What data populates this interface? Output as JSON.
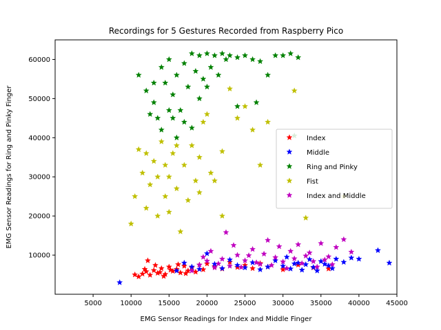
{
  "chart_data": {
    "type": "scatter",
    "title": "Recordings for 5 Gestures Recorded from Raspberry Pico",
    "xlabel": "EMG Sensor Readings for Index and Middle Finger",
    "ylabel": "EMG Sensor Readings for Ring and Pinky Finger",
    "xlim": [
      0,
      45000
    ],
    "ylim": [
      0,
      65000
    ],
    "xticks": [
      5000,
      10000,
      15000,
      20000,
      25000,
      30000,
      35000,
      40000,
      45000
    ],
    "xtick_labels": [
      "5000",
      "10000",
      "15000",
      "20000",
      "25000",
      "30000",
      "35000",
      "40000",
      "45000"
    ],
    "yticks": [
      10000,
      20000,
      30000,
      40000,
      50000,
      60000
    ],
    "ytick_labels": [
      "10000",
      "20000",
      "30000",
      "40000",
      "50000",
      "60000"
    ],
    "grid": false,
    "legend_position": "center-right",
    "marker": "star",
    "series": [
      {
        "name": "Index",
        "color": "#ff0000",
        "points": [
          [
            11000,
            4500
          ],
          [
            11500,
            5200
          ],
          [
            12000,
            5800
          ],
          [
            12500,
            4900
          ],
          [
            13000,
            6100
          ],
          [
            13500,
            5400
          ],
          [
            14000,
            6600
          ],
          [
            14500,
            5100
          ],
          [
            15000,
            7000
          ],
          [
            15500,
            5900
          ],
          [
            16000,
            6400
          ],
          [
            16500,
            5500
          ],
          [
            17000,
            7200
          ],
          [
            17500,
            6000
          ],
          [
            18000,
            6800
          ],
          [
            18500,
            5700
          ],
          [
            19000,
            7500
          ],
          [
            19500,
            6300
          ],
          [
            20000,
            7800
          ],
          [
            12200,
            8600
          ],
          [
            13200,
            7400
          ],
          [
            14300,
            4600
          ],
          [
            15200,
            6200
          ],
          [
            16200,
            7600
          ],
          [
            17200,
            5300
          ],
          [
            21000,
            7100
          ],
          [
            22000,
            6500
          ],
          [
            23000,
            8200
          ],
          [
            24000,
            6900
          ],
          [
            25000,
            7400
          ],
          [
            26000,
            6600
          ],
          [
            27000,
            7900
          ],
          [
            28000,
            7000
          ],
          [
            30000,
            6300
          ],
          [
            32000,
            7500
          ],
          [
            34000,
            6800
          ],
          [
            36000,
            6500
          ],
          [
            10500,
            5000
          ],
          [
            11800,
            6400
          ],
          [
            13800,
            5600
          ]
        ]
      },
      {
        "name": "Middle",
        "color": "#0000ff",
        "points": [
          [
            8500,
            3000
          ],
          [
            16000,
            6000
          ],
          [
            18000,
            7000
          ],
          [
            20000,
            10400
          ],
          [
            22000,
            6600
          ],
          [
            24000,
            7400
          ],
          [
            26000,
            8100
          ],
          [
            28000,
            7000
          ],
          [
            29000,
            8600
          ],
          [
            30000,
            7200
          ],
          [
            31000,
            6500
          ],
          [
            32000,
            8000
          ],
          [
            33000,
            7600
          ],
          [
            34000,
            6900
          ],
          [
            35000,
            8400
          ],
          [
            36000,
            7300
          ],
          [
            37000,
            9000
          ],
          [
            38000,
            8200
          ],
          [
            39000,
            9300
          ],
          [
            40000,
            9000
          ],
          [
            42500,
            11200
          ],
          [
            44000,
            8000
          ],
          [
            30500,
            9500
          ],
          [
            31500,
            7800
          ],
          [
            32500,
            6200
          ],
          [
            33500,
            8900
          ],
          [
            34500,
            6000
          ],
          [
            35500,
            7700
          ],
          [
            36500,
            6600
          ],
          [
            27000,
            6300
          ],
          [
            25000,
            6800
          ],
          [
            23000,
            8800
          ],
          [
            21000,
            7700
          ],
          [
            19000,
            6400
          ],
          [
            17000,
            8000
          ]
        ]
      },
      {
        "name": "Ring and Pinky",
        "color": "#008000",
        "points": [
          [
            11000,
            56000
          ],
          [
            12000,
            52000
          ],
          [
            13000,
            49000
          ],
          [
            13500,
            45000
          ],
          [
            14000,
            58000
          ],
          [
            14500,
            54000
          ],
          [
            15000,
            60000
          ],
          [
            15500,
            51000
          ],
          [
            16000,
            56000
          ],
          [
            16500,
            47000
          ],
          [
            17000,
            59000
          ],
          [
            17500,
            53000
          ],
          [
            18000,
            61500
          ],
          [
            18500,
            57000
          ],
          [
            19000,
            61000
          ],
          [
            19500,
            55000
          ],
          [
            20000,
            61500
          ],
          [
            20500,
            58000
          ],
          [
            21000,
            61000
          ],
          [
            21500,
            56000
          ],
          [
            22000,
            61500
          ],
          [
            22500,
            60000
          ],
          [
            23000,
            61000
          ],
          [
            24000,
            60500
          ],
          [
            25000,
            61000
          ],
          [
            26000,
            60000
          ],
          [
            27000,
            59500
          ],
          [
            28000,
            56000
          ],
          [
            26500,
            49000
          ],
          [
            24000,
            48000
          ],
          [
            29000,
            61000
          ],
          [
            30000,
            61000
          ],
          [
            31000,
            61500
          ],
          [
            32000,
            60500
          ],
          [
            31500,
            40500
          ],
          [
            14000,
            42000
          ],
          [
            15000,
            47000
          ],
          [
            16000,
            40000
          ],
          [
            17000,
            44000
          ],
          [
            18000,
            42500
          ],
          [
            13000,
            54000
          ],
          [
            12500,
            46000
          ],
          [
            19000,
            50000
          ],
          [
            20000,
            53000
          ],
          [
            15500,
            45000
          ]
        ]
      },
      {
        "name": "Fist",
        "color": "#bfbf00",
        "points": [
          [
            10000,
            18000
          ],
          [
            10500,
            25000
          ],
          [
            11000,
            37000
          ],
          [
            11500,
            31000
          ],
          [
            12000,
            22000
          ],
          [
            12500,
            28000
          ],
          [
            13000,
            34000
          ],
          [
            13500,
            20000
          ],
          [
            14000,
            39000
          ],
          [
            14500,
            25000
          ],
          [
            15000,
            30000
          ],
          [
            15500,
            36000
          ],
          [
            16000,
            27000
          ],
          [
            16500,
            16000
          ],
          [
            17000,
            33000
          ],
          [
            17500,
            24000
          ],
          [
            18000,
            38000
          ],
          [
            18500,
            29000
          ],
          [
            19000,
            35000
          ],
          [
            19500,
            44000
          ],
          [
            20000,
            46000
          ],
          [
            21000,
            29000
          ],
          [
            22000,
            36500
          ],
          [
            23000,
            52500
          ],
          [
            24000,
            45000
          ],
          [
            25000,
            48000
          ],
          [
            26000,
            42000
          ],
          [
            27000,
            33000
          ],
          [
            28000,
            44000
          ],
          [
            31500,
            52000
          ],
          [
            33000,
            19500
          ],
          [
            38000,
            25000
          ],
          [
            22000,
            20000
          ],
          [
            19000,
            26000
          ],
          [
            20500,
            31000
          ],
          [
            13500,
            30000
          ],
          [
            14500,
            33000
          ],
          [
            15000,
            21000
          ],
          [
            16000,
            38000
          ],
          [
            12000,
            36000
          ]
        ]
      },
      {
        "name": "Index and Middle",
        "color": "#bf00bf",
        "points": [
          [
            18000,
            6000
          ],
          [
            19000,
            7500
          ],
          [
            20000,
            8500
          ],
          [
            21000,
            6800
          ],
          [
            22000,
            9000
          ],
          [
            22500,
            15800
          ],
          [
            23000,
            7200
          ],
          [
            24000,
            10000
          ],
          [
            25000,
            8600
          ],
          [
            26000,
            11500
          ],
          [
            27000,
            7700
          ],
          [
            28000,
            13800
          ],
          [
            29000,
            9400
          ],
          [
            30000,
            8300
          ],
          [
            31000,
            11000
          ],
          [
            32000,
            12700
          ],
          [
            33000,
            9800
          ],
          [
            34000,
            8400
          ],
          [
            35000,
            13000
          ],
          [
            36000,
            9600
          ],
          [
            37000,
            12000
          ],
          [
            38000,
            14000
          ],
          [
            39000,
            10800
          ],
          [
            20500,
            11000
          ],
          [
            21500,
            7800
          ],
          [
            23500,
            12500
          ],
          [
            24500,
            6900
          ],
          [
            25500,
            9900
          ],
          [
            26500,
            8100
          ],
          [
            27500,
            10300
          ],
          [
            28500,
            7400
          ],
          [
            29500,
            12200
          ],
          [
            30500,
            6600
          ],
          [
            31500,
            9100
          ],
          [
            32500,
            7900
          ],
          [
            33500,
            10600
          ],
          [
            34500,
            7000
          ],
          [
            35500,
            8800
          ],
          [
            36500,
            7600
          ],
          [
            19500,
            9500
          ]
        ]
      }
    ]
  }
}
